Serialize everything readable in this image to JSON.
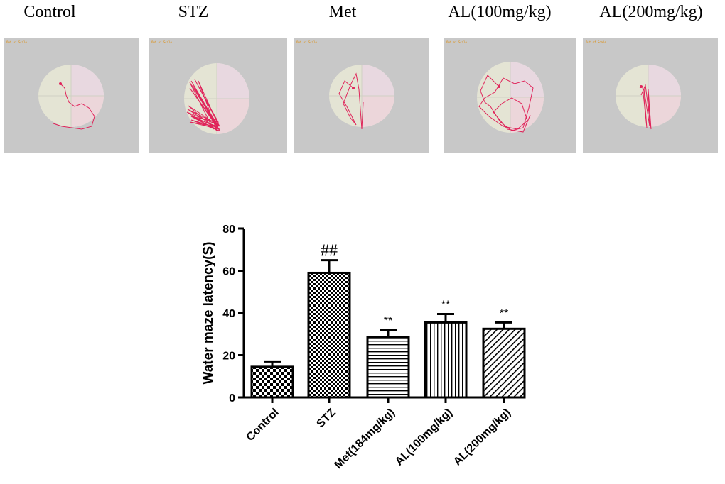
{
  "panels": [
    {
      "label": "Control",
      "caption": "Out of Scale"
    },
    {
      "label": "STZ",
      "caption": "Out of Scale"
    },
    {
      "label": "Met",
      "caption": "Out of Scale"
    },
    {
      "label": "AL(100mg/kg)",
      "caption": "Out of Scale"
    },
    {
      "label": "AL(200mg/kg)",
      "caption": "Out of Scale"
    }
  ],
  "colors": {
    "panel_bg": "#c8c8c8",
    "pool": "#e4e4d4",
    "quadrant_pink": "#e8d8e0",
    "track": "#e0245a",
    "bar_edge": "#000000"
  },
  "chart_data": {
    "type": "bar",
    "categories": [
      "Control",
      "STZ",
      "Met(184mg/kg)",
      "AL(100mg/kg)",
      "AL(200mg/kg)"
    ],
    "values": [
      14.5,
      59,
      28.5,
      35.5,
      32.5
    ],
    "errors": [
      2.5,
      6,
      3.5,
      4,
      3
    ],
    "annotations": [
      "",
      "##",
      "**",
      "**",
      "**"
    ],
    "patterns": [
      "checker",
      "checker-fine",
      "horizontal",
      "vertical",
      "diagonal"
    ],
    "ylabel": "Water maze latency(S)",
    "xlabel": "",
    "ylim": [
      0,
      80
    ],
    "yticks": [
      0,
      20,
      40,
      60,
      80
    ],
    "grid": false
  }
}
